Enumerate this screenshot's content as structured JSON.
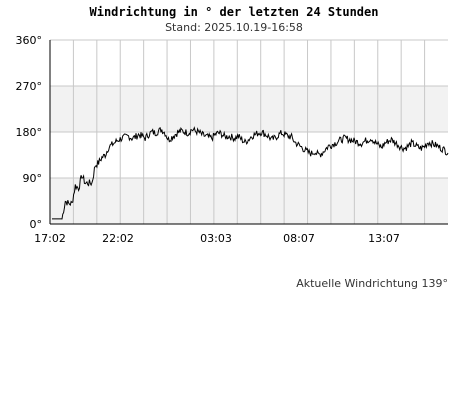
{
  "chart_data": {
    "type": "line",
    "title": "Windrichtung in ° der letzten 24 Stunden",
    "subtitle": "Stand: 2025.10.19-16:58",
    "y_ticks": [
      "0°",
      "90°",
      "180°",
      "270°",
      "360°"
    ],
    "ylim": [
      0,
      360
    ],
    "x_ticks": [
      "17:02",
      "22:02",
      "03:03",
      "08:07",
      "13:07"
    ],
    "grid": true,
    "series": [
      {
        "values": [
          10,
          10,
          10,
          10,
          45,
          40,
          40,
          75,
          70,
          95,
          80,
          80,
          80,
          115,
          120,
          130,
          135,
          150,
          155,
          160,
          165,
          168,
          170,
          172,
          168,
          170,
          175,
          172,
          168,
          175,
          180,
          178,
          182,
          185,
          178,
          165,
          170,
          175,
          180,
          182,
          180,
          178,
          185,
          182,
          180,
          175,
          172,
          170,
          168,
          175,
          178,
          176,
          170,
          172,
          170,
          168,
          172,
          165,
          160,
          165,
          172,
          175,
          178,
          180,
          176,
          172,
          165,
          168,
          174,
          178,
          175,
          172,
          170,
          160,
          155,
          150,
          145,
          140,
          138,
          142,
          135,
          138,
          145,
          152,
          155,
          158,
          162,
          165,
          168,
          166,
          164,
          162,
          160,
          158,
          162,
          165,
          168,
          160,
          155,
          150,
          158,
          162,
          165,
          160,
          155,
          150,
          148,
          152,
          158,
          155,
          150,
          148,
          152,
          160,
          158,
          155,
          152,
          148,
          145,
          139
        ]
      }
    ],
    "current_label": "Aktuelle Windrichtung 139°"
  }
}
